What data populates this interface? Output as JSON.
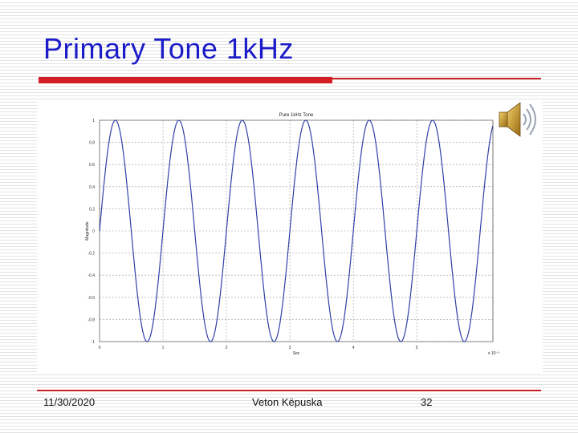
{
  "slide": {
    "title": "Primary Tone 1kHz"
  },
  "footer": {
    "date": "11/30/2020",
    "author": "Veton Këpuska",
    "page": "32"
  },
  "colors": {
    "title": "#1c1cc8",
    "accent_red": "#d41e26",
    "wave": "#3040a8"
  },
  "icons": {
    "audio": "speaker-icon"
  },
  "chart_data": {
    "type": "line",
    "title": "Pure 1kHz Tone",
    "xlabel": "Sec",
    "ylabel": "Magnitude",
    "x_exponent_label": "x 10⁻³",
    "xlim": [
      0,
      6.2
    ],
    "ylim": [
      -1,
      1
    ],
    "grid": true,
    "xticks": [
      0,
      1,
      2,
      3,
      4,
      5
    ],
    "yticks": [
      1,
      0.8,
      0.6,
      0.4,
      0.2,
      0,
      -0.2,
      -0.4,
      -0.6,
      -0.8,
      -1
    ],
    "ytick_labels": [
      "1",
      "0.8",
      "0.6",
      "0.4",
      "0.2",
      "0",
      "-0.2",
      "-0.4",
      "-0.6",
      "-0.8",
      "-1"
    ],
    "series": [
      {
        "frequency_hz": 1000,
        "amplitude": 1,
        "x_unit_scale": 0.001
      }
    ]
  }
}
